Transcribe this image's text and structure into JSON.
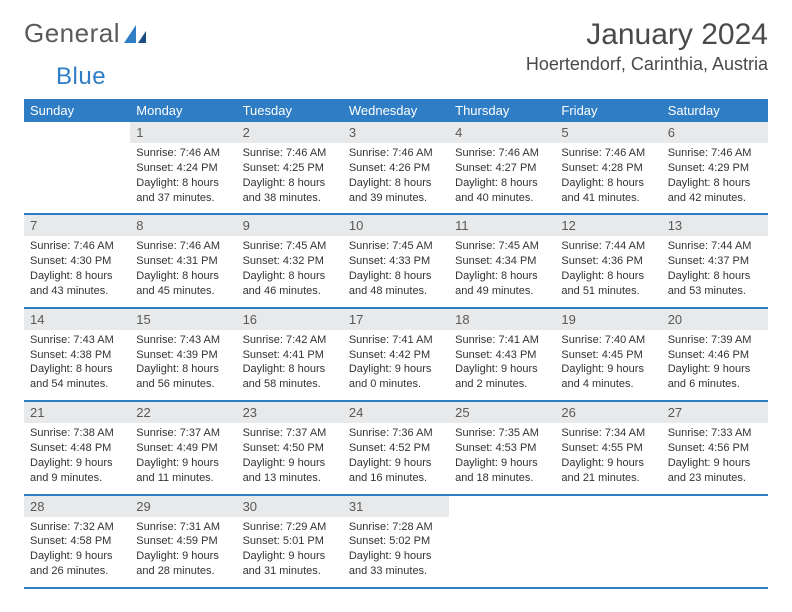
{
  "logo": {
    "text_a": "General",
    "text_b": "Blue"
  },
  "title": "January 2024",
  "location": "Hoertendorf, Carinthia, Austria",
  "colors": {
    "accent": "#2f7dc4",
    "header_bg": "#2f7dc4",
    "daynum_bg": "#e8e9ea",
    "text": "#333333",
    "muted": "#595959"
  },
  "weekdays": [
    "Sunday",
    "Monday",
    "Tuesday",
    "Wednesday",
    "Thursday",
    "Friday",
    "Saturday"
  ],
  "start_offset": 1,
  "days": [
    {
      "n": 1,
      "sr": "7:46 AM",
      "ss": "4:24 PM",
      "dl": "8 hours and 37 minutes."
    },
    {
      "n": 2,
      "sr": "7:46 AM",
      "ss": "4:25 PM",
      "dl": "8 hours and 38 minutes."
    },
    {
      "n": 3,
      "sr": "7:46 AM",
      "ss": "4:26 PM",
      "dl": "8 hours and 39 minutes."
    },
    {
      "n": 4,
      "sr": "7:46 AM",
      "ss": "4:27 PM",
      "dl": "8 hours and 40 minutes."
    },
    {
      "n": 5,
      "sr": "7:46 AM",
      "ss": "4:28 PM",
      "dl": "8 hours and 41 minutes."
    },
    {
      "n": 6,
      "sr": "7:46 AM",
      "ss": "4:29 PM",
      "dl": "8 hours and 42 minutes."
    },
    {
      "n": 7,
      "sr": "7:46 AM",
      "ss": "4:30 PM",
      "dl": "8 hours and 43 minutes."
    },
    {
      "n": 8,
      "sr": "7:46 AM",
      "ss": "4:31 PM",
      "dl": "8 hours and 45 minutes."
    },
    {
      "n": 9,
      "sr": "7:45 AM",
      "ss": "4:32 PM",
      "dl": "8 hours and 46 minutes."
    },
    {
      "n": 10,
      "sr": "7:45 AM",
      "ss": "4:33 PM",
      "dl": "8 hours and 48 minutes."
    },
    {
      "n": 11,
      "sr": "7:45 AM",
      "ss": "4:34 PM",
      "dl": "8 hours and 49 minutes."
    },
    {
      "n": 12,
      "sr": "7:44 AM",
      "ss": "4:36 PM",
      "dl": "8 hours and 51 minutes."
    },
    {
      "n": 13,
      "sr": "7:44 AM",
      "ss": "4:37 PM",
      "dl": "8 hours and 53 minutes."
    },
    {
      "n": 14,
      "sr": "7:43 AM",
      "ss": "4:38 PM",
      "dl": "8 hours and 54 minutes."
    },
    {
      "n": 15,
      "sr": "7:43 AM",
      "ss": "4:39 PM",
      "dl": "8 hours and 56 minutes."
    },
    {
      "n": 16,
      "sr": "7:42 AM",
      "ss": "4:41 PM",
      "dl": "8 hours and 58 minutes."
    },
    {
      "n": 17,
      "sr": "7:41 AM",
      "ss": "4:42 PM",
      "dl": "9 hours and 0 minutes."
    },
    {
      "n": 18,
      "sr": "7:41 AM",
      "ss": "4:43 PM",
      "dl": "9 hours and 2 minutes."
    },
    {
      "n": 19,
      "sr": "7:40 AM",
      "ss": "4:45 PM",
      "dl": "9 hours and 4 minutes."
    },
    {
      "n": 20,
      "sr": "7:39 AM",
      "ss": "4:46 PM",
      "dl": "9 hours and 6 minutes."
    },
    {
      "n": 21,
      "sr": "7:38 AM",
      "ss": "4:48 PM",
      "dl": "9 hours and 9 minutes."
    },
    {
      "n": 22,
      "sr": "7:37 AM",
      "ss": "4:49 PM",
      "dl": "9 hours and 11 minutes."
    },
    {
      "n": 23,
      "sr": "7:37 AM",
      "ss": "4:50 PM",
      "dl": "9 hours and 13 minutes."
    },
    {
      "n": 24,
      "sr": "7:36 AM",
      "ss": "4:52 PM",
      "dl": "9 hours and 16 minutes."
    },
    {
      "n": 25,
      "sr": "7:35 AM",
      "ss": "4:53 PM",
      "dl": "9 hours and 18 minutes."
    },
    {
      "n": 26,
      "sr": "7:34 AM",
      "ss": "4:55 PM",
      "dl": "9 hours and 21 minutes."
    },
    {
      "n": 27,
      "sr": "7:33 AM",
      "ss": "4:56 PM",
      "dl": "9 hours and 23 minutes."
    },
    {
      "n": 28,
      "sr": "7:32 AM",
      "ss": "4:58 PM",
      "dl": "9 hours and 26 minutes."
    },
    {
      "n": 29,
      "sr": "7:31 AM",
      "ss": "4:59 PM",
      "dl": "9 hours and 28 minutes."
    },
    {
      "n": 30,
      "sr": "7:29 AM",
      "ss": "5:01 PM",
      "dl": "9 hours and 31 minutes."
    },
    {
      "n": 31,
      "sr": "7:28 AM",
      "ss": "5:02 PM",
      "dl": "9 hours and 33 minutes."
    }
  ],
  "labels": {
    "sunrise": "Sunrise: ",
    "sunset": "Sunset: ",
    "daylight": "Daylight: "
  }
}
